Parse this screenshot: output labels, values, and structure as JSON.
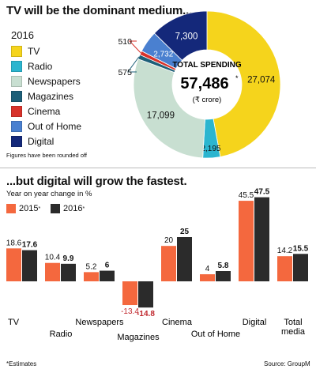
{
  "colors": {
    "tv": "#f5d41c",
    "radio": "#2bb5cf",
    "newspapers": "#c8dfd1",
    "magazines": "#1d5f78",
    "cinema": "#d8322a",
    "out_of_home": "#4a80d0",
    "digital": "#14287a",
    "bar_2015": "#f4683e",
    "bar_2016": "#2b2b2b",
    "negative_label": "#c0282e"
  },
  "top_title": "TV will be the dominant medium...",
  "legend_year": "2016",
  "rounding_note": "Figures have been rounded off",
  "bottom_title": "...but digital will grow the fastest.",
  "bottom_subtitle": "Year on year change in %",
  "footnote": "*Estimates",
  "source": "Source: GroupM",
  "chart_data": [
    {
      "type": "pie",
      "title": "TV will be the dominant medium...",
      "legend_title": "2016",
      "center_label": "TOTAL SPENDING",
      "center_value": "57,486",
      "center_value_mark": "*",
      "center_unit": "(₹ crore)",
      "legend_placement": "left",
      "slices": [
        {
          "name": "TV",
          "value": 27074,
          "label": "27,074",
          "color": "#f5d41c"
        },
        {
          "name": "Radio",
          "value": 2195,
          "label": "2,195",
          "color": "#2bb5cf"
        },
        {
          "name": "Newspapers",
          "value": 17099,
          "label": "17,099",
          "color": "#c8dfd1"
        },
        {
          "name": "Magazines",
          "value": 575,
          "label": "575",
          "color": "#1d5f78"
        },
        {
          "name": "Cinema",
          "value": 510,
          "label": "510",
          "color": "#d8322a"
        },
        {
          "name": "Out of Home",
          "value": 2732,
          "label": "2,732",
          "color": "#4a80d0"
        },
        {
          "name": "Digital",
          "value": 7300,
          "label": "7,300",
          "color": "#14287a"
        }
      ]
    },
    {
      "type": "bar",
      "title": "...but digital will grow the fastest.",
      "ylabel": "Year on year change in %",
      "categories": [
        "TV",
        "Radio",
        "Newspapers",
        "Magazines",
        "Cinema",
        "Out of Home",
        "Digital",
        "Total media"
      ],
      "category_labels": [
        [
          "TV"
        ],
        [
          "Radio"
        ],
        [
          "Newspapers"
        ],
        [
          "Magazines"
        ],
        [
          "Cinema"
        ],
        [
          "Out of Home"
        ],
        [
          "Digital"
        ],
        [
          "Total",
          "media"
        ]
      ],
      "series": [
        {
          "name": "2015*",
          "name_base": "2015",
          "name_mark": "*",
          "color": "#f4683e",
          "values": [
            18.6,
            10.4,
            5.2,
            -13.4,
            20,
            4,
            45.5,
            14.2
          ],
          "labels": [
            "18.6",
            "10.4",
            "5.2",
            "-13.4",
            "20",
            "4",
            "45.5",
            "14.2"
          ]
        },
        {
          "name": "2016*",
          "name_base": "2016",
          "name_mark": "*",
          "color": "#2b2b2b",
          "values": [
            17.6,
            9.9,
            6,
            -14.8,
            25,
            5.8,
            47.5,
            15.5
          ],
          "labels": [
            "17.6",
            "9.9",
            "6",
            "-14.8",
            "25",
            "5.8",
            "47.5",
            "15.5"
          ]
        }
      ],
      "ylim": [
        -15,
        50
      ],
      "grid": false,
      "legend_placement": "top-left"
    }
  ]
}
